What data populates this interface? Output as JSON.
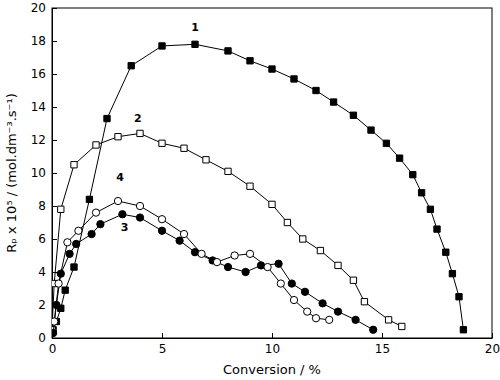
{
  "chart_data": {
    "type": "line",
    "x_label": "Conversion / %",
    "y_label": "Rₚ x 10⁵ / (mol.dm⁻³.s⁻¹)",
    "xlim": [
      0,
      20
    ],
    "xticks": [
      0,
      5,
      10,
      15,
      20
    ],
    "ylim": [
      0,
      20
    ],
    "yticks": [
      0,
      2,
      4,
      6,
      8,
      10,
      12,
      14,
      16,
      18,
      20
    ],
    "grid": false,
    "series": [
      {
        "color": "#000000",
        "marker": "square",
        "line_style": "solid",
        "x": [
          0.05,
          0.2,
          0.4,
          0.6,
          1.0,
          1.7,
          2.5,
          3.6,
          5.0,
          6.5,
          8.0,
          9.0,
          10.0,
          11.0,
          12.0,
          12.8,
          13.7,
          14.5,
          15.2,
          15.8,
          16.4,
          16.8,
          17.2,
          17.5,
          17.9,
          18.2,
          18.5,
          18.7
        ],
        "values": [
          0.5,
          1.0,
          1.8,
          2.9,
          4.3,
          8.4,
          13.3,
          16.5,
          17.7,
          17.8,
          17.4,
          16.8,
          16.3,
          15.7,
          15.0,
          14.3,
          13.5,
          12.6,
          11.8,
          10.9,
          9.9,
          8.8,
          7.8,
          6.6,
          5.2,
          3.9,
          2.5,
          0.5
        ]
      },
      {
        "color": "#000000",
        "marker": "square-open",
        "line_style": "solid",
        "x": [
          0.0,
          0.1,
          0.4,
          1.0,
          2.0,
          3.0,
          4.0,
          5.0,
          6.0,
          7.0,
          8.0,
          9.0,
          10.0,
          10.7,
          11.4,
          12.2,
          13.0,
          13.7,
          14.2,
          15.3,
          15.9
        ],
        "values": [
          0.5,
          3.3,
          7.8,
          10.5,
          11.7,
          12.2,
          12.4,
          11.8,
          11.5,
          10.8,
          10.1,
          9.2,
          8.1,
          7.0,
          6.0,
          5.3,
          4.4,
          3.5,
          2.2,
          1.1,
          0.7
        ]
      },
      {
        "color": "#000000",
        "marker": "circle",
        "line_style": "solid",
        "x": [
          0.05,
          0.2,
          0.4,
          0.8,
          1.1,
          1.8,
          2.2,
          3.2,
          4.0,
          5.0,
          5.8,
          6.5,
          7.3,
          8.0,
          8.8,
          9.5,
          10.3,
          10.9,
          11.5,
          12.3,
          13.0,
          13.8,
          14.6
        ],
        "values": [
          0.3,
          2.0,
          3.9,
          5.1,
          5.7,
          6.3,
          6.9,
          7.5,
          7.3,
          6.5,
          5.9,
          5.2,
          4.7,
          4.3,
          4.0,
          4.4,
          4.5,
          3.3,
          2.8,
          2.1,
          1.6,
          1.1,
          0.5
        ]
      },
      {
        "color": "#000000",
        "marker": "circle-open",
        "line_style": "solid",
        "x": [
          0.1,
          0.3,
          0.7,
          1.2,
          2.0,
          3.0,
          4.0,
          5.0,
          6.0,
          6.8,
          7.5,
          8.3,
          9.0,
          9.8,
          10.4,
          11.0,
          11.6,
          12.0,
          12.6
        ],
        "values": [
          1.0,
          3.3,
          5.8,
          6.5,
          7.6,
          8.3,
          8.0,
          7.2,
          6.3,
          5.1,
          4.6,
          5.0,
          5.1,
          4.3,
          3.3,
          2.3,
          1.6,
          1.2,
          1.1
        ]
      }
    ],
    "annotations": [
      {
        "text": "1",
        "x": 6.5,
        "y": 18.6
      },
      {
        "text": "2",
        "x": 3.9,
        "y": 13.1
      },
      {
        "text": "3",
        "x": 3.3,
        "y": 6.5
      },
      {
        "text": "4",
        "x": 3.1,
        "y": 9.5
      }
    ]
  }
}
